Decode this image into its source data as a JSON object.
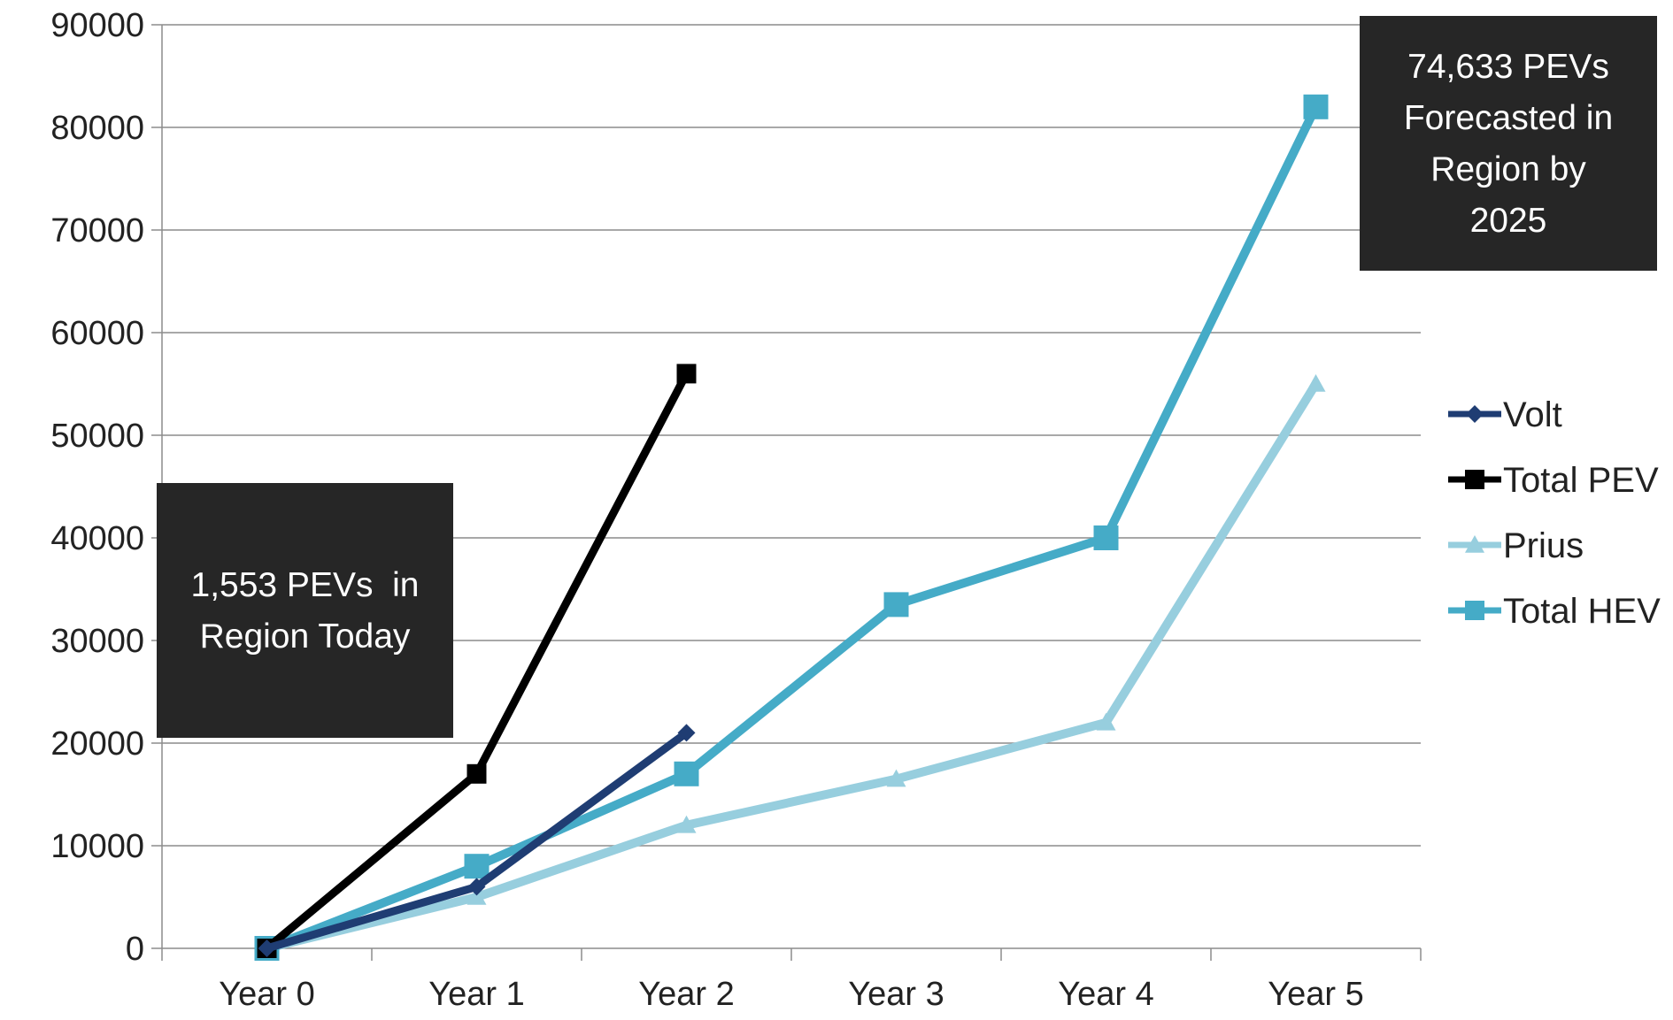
{
  "chart_data": {
    "type": "line",
    "categories": [
      "Year 0",
      "Year 1",
      "Year 2",
      "Year 3",
      "Year 4",
      "Year 5"
    ],
    "ylim": [
      0,
      90000
    ],
    "yticks": [
      0,
      10000,
      20000,
      30000,
      40000,
      50000,
      60000,
      70000,
      80000,
      90000
    ],
    "grid": true,
    "legend_position": "right",
    "series": [
      {
        "name": "Volt",
        "color": "#1f3d73",
        "marker": "diamond",
        "width": 9,
        "marker_size": 20,
        "values": [
          0,
          6000,
          21000,
          null,
          null,
          null
        ]
      },
      {
        "name": "Total PEV",
        "color": "#000000",
        "marker": "square",
        "width": 9,
        "marker_size": 22,
        "values": [
          0,
          17000,
          56000,
          null,
          null,
          null
        ]
      },
      {
        "name": "Prius",
        "color": "#97cede",
        "marker": "triangle",
        "width": 10,
        "marker_size": 22,
        "values": [
          0,
          5000,
          12000,
          16500,
          22000,
          55000
        ]
      },
      {
        "name": "Total HEV",
        "color": "#45abc7",
        "marker": "square",
        "width": 10,
        "marker_size": 28,
        "values": [
          0,
          8000,
          17000,
          33500,
          40000,
          82000
        ]
      }
    ],
    "annotations": [
      {
        "id": "today",
        "lines": [
          "1,553 PEVs  in",
          "Region Today"
        ]
      },
      {
        "id": "forecast",
        "lines": [
          "74,633 PEVs",
          "Forecasted in",
          "Region by",
          "2025"
        ]
      }
    ]
  }
}
